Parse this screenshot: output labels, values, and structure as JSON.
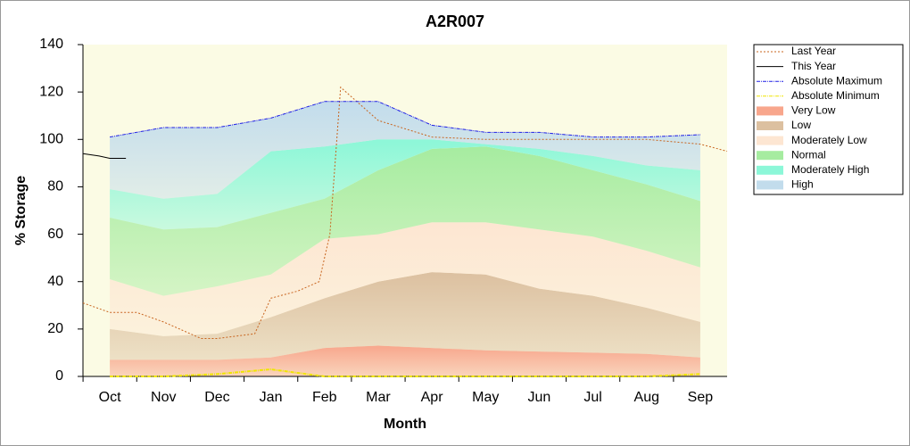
{
  "chart_data": {
    "type": "band-area",
    "title": "A2R007",
    "x_label": "Month",
    "y_label": "% Storage",
    "xlim": [
      -0.5,
      11.5
    ],
    "xticks": [
      {
        "value": 0,
        "label": "Oct"
      },
      {
        "value": 1,
        "label": "Nov"
      },
      {
        "value": 2,
        "label": "Dec"
      },
      {
        "value": 3,
        "label": "Jan"
      },
      {
        "value": 4,
        "label": "Feb"
      },
      {
        "value": 5,
        "label": "Mar"
      },
      {
        "value": 6,
        "label": "Apr"
      },
      {
        "value": 7,
        "label": "May"
      },
      {
        "value": 8,
        "label": "Jun"
      },
      {
        "value": 9,
        "label": "Jul"
      },
      {
        "value": 10,
        "label": "Aug"
      },
      {
        "value": 11,
        "label": "Sep"
      }
    ],
    "ylim": [
      0,
      140
    ],
    "yticks": [
      0,
      20,
      40,
      60,
      80,
      100,
      120,
      140
    ],
    "legend": "right",
    "series": [
      {
        "name": "Last Year",
        "kind": "line",
        "dash": "dotted",
        "color": "#c8641e",
        "x": [
          -0.5,
          0,
          0.5,
          1,
          1.7,
          2,
          2.7,
          3,
          3.5,
          3.9,
          4.1,
          4.3,
          5,
          6,
          7,
          8,
          9,
          10,
          11,
          11.5
        ],
        "values": [
          31,
          27,
          27,
          23,
          16,
          16,
          18,
          33,
          36,
          40,
          60,
          122,
          108,
          101,
          100,
          100,
          100,
          100,
          98,
          95
        ]
      },
      {
        "name": "This Year",
        "kind": "line",
        "dash": "solid",
        "color": "#000000",
        "x": [
          -0.5,
          -0.2,
          0,
          0.3
        ],
        "values": [
          94,
          93,
          92,
          92
        ]
      },
      {
        "name": "Absolute Maximum",
        "kind": "line",
        "dash": "dashdot",
        "color": "#1e1ee6",
        "x": [
          0,
          1,
          2,
          3,
          4,
          5,
          6,
          7,
          8,
          9,
          10,
          11
        ],
        "values": [
          101,
          105,
          105,
          109,
          116,
          116,
          106,
          103,
          103,
          101,
          101,
          102
        ]
      },
      {
        "name": "Absolute Minimum",
        "kind": "line",
        "dash": "dashdot",
        "color": "#f0e600",
        "x": [
          0,
          1,
          2,
          3,
          4,
          5,
          6,
          7,
          8,
          9,
          10,
          11
        ],
        "values": [
          0,
          0,
          1,
          3,
          0,
          0,
          0,
          0,
          0,
          0,
          0,
          1
        ]
      },
      {
        "name": "Very Low",
        "kind": "band",
        "color": "#f8a68c",
        "x": [
          0,
          1,
          2,
          3,
          4,
          5,
          6,
          7,
          8,
          9,
          10,
          11
        ],
        "values": [
          7,
          7,
          7,
          8,
          12,
          13,
          12,
          11,
          10.5,
          10,
          9.5,
          8
        ]
      },
      {
        "name": "Low",
        "kind": "band",
        "color": "#dcc0a0",
        "x": [
          0,
          1,
          2,
          3,
          4,
          5,
          6,
          7,
          8,
          9,
          10,
          11
        ],
        "values": [
          20,
          17,
          18,
          25,
          33,
          40,
          44,
          43,
          37,
          34,
          29,
          23
        ]
      },
      {
        "name": "Moderately Low",
        "kind": "band",
        "color": "#fde6d2",
        "x": [
          0,
          1,
          2,
          3,
          4,
          5,
          6,
          7,
          8,
          9,
          10,
          11
        ],
        "values": [
          41,
          34,
          38,
          43,
          58,
          60,
          65,
          65,
          62,
          59,
          53,
          46
        ]
      },
      {
        "name": "Normal",
        "kind": "band",
        "color": "#a6eca0",
        "x": [
          0,
          1,
          2,
          3,
          4,
          5,
          6,
          7,
          8,
          9,
          10,
          11
        ],
        "values": [
          67,
          62,
          63,
          69,
          75,
          87,
          96,
          97,
          93,
          87,
          81,
          74
        ]
      },
      {
        "name": "Moderately High",
        "kind": "band",
        "color": "#8cf7d8",
        "x": [
          0,
          1,
          2,
          3,
          4,
          5,
          6,
          7,
          8,
          9,
          10,
          11
        ],
        "values": [
          79,
          75,
          77,
          95,
          97,
          100,
          100,
          98,
          96,
          93,
          89,
          87
        ]
      },
      {
        "name": "High",
        "kind": "band",
        "color": "#c2dcec",
        "x": [
          0,
          1,
          2,
          3,
          4,
          5,
          6,
          7,
          8,
          9,
          10,
          11
        ],
        "values": [
          101,
          105,
          105,
          109,
          116,
          116,
          106,
          103,
          103,
          101,
          101,
          102
        ]
      }
    ]
  }
}
